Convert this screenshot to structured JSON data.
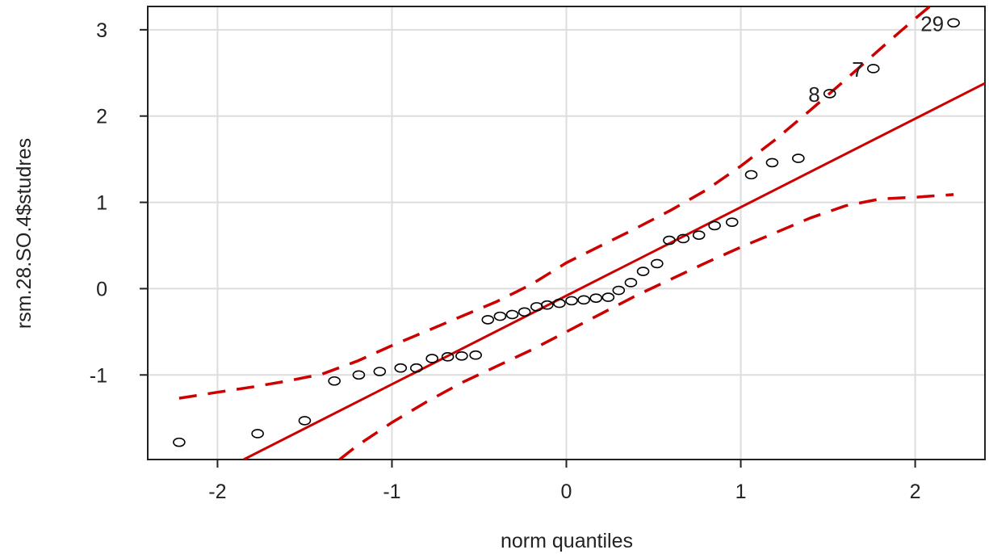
{
  "chart_data": {
    "type": "scatter",
    "title": "",
    "xlabel": "norm quantiles",
    "ylabel": "rsm.28.SO.4$studres",
    "xlim": [
      -2.4,
      2.4
    ],
    "ylim": [
      -1.98,
      3.27
    ],
    "x_ticks": [
      -2,
      -1,
      0,
      1,
      2
    ],
    "y_ticks": [
      -1,
      0,
      1,
      2,
      3
    ],
    "x_tick_labels": [
      "-2",
      "-1",
      "0",
      "1",
      "2"
    ],
    "y_tick_labels": [
      "-1",
      "0",
      "1",
      "2",
      "3"
    ],
    "grid": true,
    "colors": {
      "points": "#000000",
      "line": "#cc0000",
      "envelope": "#cc0000",
      "grid": "#dddddd"
    },
    "points": [
      {
        "x": -2.22,
        "y": -1.78
      },
      {
        "x": -1.77,
        "y": -1.68
      },
      {
        "x": -1.5,
        "y": -1.53
      },
      {
        "x": -1.33,
        "y": -1.07
      },
      {
        "x": -1.19,
        "y": -1.0
      },
      {
        "x": -1.07,
        "y": -0.96
      },
      {
        "x": -0.95,
        "y": -0.92
      },
      {
        "x": -0.86,
        "y": -0.92
      },
      {
        "x": -0.77,
        "y": -0.81
      },
      {
        "x": -0.68,
        "y": -0.79
      },
      {
        "x": -0.6,
        "y": -0.78
      },
      {
        "x": -0.52,
        "y": -0.77
      },
      {
        "x": -0.45,
        "y": -0.36
      },
      {
        "x": -0.38,
        "y": -0.32
      },
      {
        "x": -0.31,
        "y": -0.3
      },
      {
        "x": -0.24,
        "y": -0.27
      },
      {
        "x": -0.17,
        "y": -0.21
      },
      {
        "x": -0.11,
        "y": -0.19
      },
      {
        "x": -0.04,
        "y": -0.17
      },
      {
        "x": 0.03,
        "y": -0.14
      },
      {
        "x": 0.1,
        "y": -0.13
      },
      {
        "x": 0.17,
        "y": -0.11
      },
      {
        "x": 0.24,
        "y": -0.1
      },
      {
        "x": 0.3,
        "y": -0.02
      },
      {
        "x": 0.37,
        "y": 0.07
      },
      {
        "x": 0.44,
        "y": 0.2
      },
      {
        "x": 0.52,
        "y": 0.29
      },
      {
        "x": 0.59,
        "y": 0.56
      },
      {
        "x": 0.67,
        "y": 0.58
      },
      {
        "x": 0.76,
        "y": 0.62
      },
      {
        "x": 0.85,
        "y": 0.73
      },
      {
        "x": 0.95,
        "y": 0.77
      },
      {
        "x": 1.06,
        "y": 1.32
      },
      {
        "x": 1.18,
        "y": 1.46
      },
      {
        "x": 1.33,
        "y": 1.51
      },
      {
        "x": 1.51,
        "y": 2.26,
        "label": "8"
      },
      {
        "x": 1.76,
        "y": 2.55,
        "label": "7"
      },
      {
        "x": 2.22,
        "y": 3.08,
        "label": "29"
      }
    ],
    "reference_line": {
      "x": [
        -1.85,
        2.4
      ],
      "y": [
        -1.98,
        2.38
      ]
    },
    "envelope_upper": [
      {
        "x": -2.22,
        "y": -1.27
      },
      {
        "x": -2.0,
        "y": -1.2
      },
      {
        "x": -1.8,
        "y": -1.14
      },
      {
        "x": -1.6,
        "y": -1.07
      },
      {
        "x": -1.4,
        "y": -0.99
      },
      {
        "x": -1.2,
        "y": -0.84
      },
      {
        "x": -1.0,
        "y": -0.66
      },
      {
        "x": -0.8,
        "y": -0.49
      },
      {
        "x": -0.6,
        "y": -0.32
      },
      {
        "x": -0.4,
        "y": -0.15
      },
      {
        "x": -0.2,
        "y": 0.05
      },
      {
        "x": 0.0,
        "y": 0.3
      },
      {
        "x": 0.2,
        "y": 0.5
      },
      {
        "x": 0.4,
        "y": 0.7
      },
      {
        "x": 0.6,
        "y": 0.91
      },
      {
        "x": 0.8,
        "y": 1.14
      },
      {
        "x": 1.0,
        "y": 1.42
      },
      {
        "x": 1.2,
        "y": 1.73
      },
      {
        "x": 1.4,
        "y": 2.07
      },
      {
        "x": 1.6,
        "y": 2.42
      },
      {
        "x": 1.8,
        "y": 2.78
      },
      {
        "x": 2.0,
        "y": 3.13
      },
      {
        "x": 2.22,
        "y": 3.5
      }
    ],
    "envelope_lower": [
      {
        "x": -1.3,
        "y": -1.98
      },
      {
        "x": -1.2,
        "y": -1.82
      },
      {
        "x": -1.0,
        "y": -1.55
      },
      {
        "x": -0.8,
        "y": -1.31
      },
      {
        "x": -0.6,
        "y": -1.09
      },
      {
        "x": -0.4,
        "y": -0.9
      },
      {
        "x": -0.2,
        "y": -0.71
      },
      {
        "x": 0.0,
        "y": -0.5
      },
      {
        "x": 0.2,
        "y": -0.29
      },
      {
        "x": 0.4,
        "y": -0.08
      },
      {
        "x": 0.6,
        "y": 0.11
      },
      {
        "x": 0.8,
        "y": 0.3
      },
      {
        "x": 1.0,
        "y": 0.48
      },
      {
        "x": 1.2,
        "y": 0.65
      },
      {
        "x": 1.4,
        "y": 0.82
      },
      {
        "x": 1.6,
        "y": 0.96
      },
      {
        "x": 1.8,
        "y": 1.04
      },
      {
        "x": 2.0,
        "y": 1.06
      },
      {
        "x": 2.22,
        "y": 1.09
      }
    ]
  }
}
